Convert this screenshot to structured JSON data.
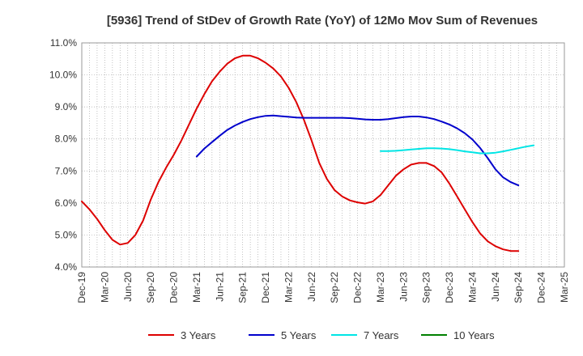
{
  "chart_data": {
    "type": "line",
    "title": "[5936]  Trend of StDev of Growth Rate (YoY) of 12Mo Mov Sum of Revenues",
    "xlabel": "",
    "ylabel": "",
    "ylim": [
      4.0,
      11.0
    ],
    "yticks": [
      4.0,
      5.0,
      6.0,
      7.0,
      8.0,
      9.0,
      10.0,
      11.0
    ],
    "ytick_labels": [
      "4.0%",
      "5.0%",
      "6.0%",
      "7.0%",
      "8.0%",
      "9.0%",
      "10.0%",
      "11.0%"
    ],
    "x_labels": [
      "Dec-19",
      "Mar-20",
      "Jun-20",
      "Sep-20",
      "Dec-20",
      "Mar-21",
      "Jun-21",
      "Sep-21",
      "Dec-21",
      "Mar-22",
      "Jun-22",
      "Sep-22",
      "Dec-22",
      "Mar-23",
      "Jun-23",
      "Sep-23",
      "Dec-23",
      "Mar-24",
      "Jun-24",
      "Sep-24",
      "Dec-24",
      "Mar-25"
    ],
    "grid": true,
    "legend_position": "bottom",
    "series": [
      {
        "name": "3 Years",
        "color": "#dd0000",
        "start_month": 0,
        "values": [
          6.05,
          5.8,
          5.5,
          5.15,
          4.85,
          4.7,
          4.75,
          5.0,
          5.45,
          6.1,
          6.65,
          7.1,
          7.5,
          7.95,
          8.45,
          8.95,
          9.4,
          9.8,
          10.1,
          10.35,
          10.52,
          10.6,
          10.6,
          10.52,
          10.38,
          10.2,
          9.95,
          9.6,
          9.15,
          8.6,
          7.95,
          7.25,
          6.75,
          6.4,
          6.2,
          6.08,
          6.02,
          5.98,
          6.05,
          6.25,
          6.55,
          6.85,
          7.05,
          7.2,
          7.25,
          7.25,
          7.15,
          6.95,
          6.6,
          6.2,
          5.8,
          5.4,
          5.05,
          4.8,
          4.65,
          4.55,
          4.5,
          4.5
        ]
      },
      {
        "name": "5 Years",
        "color": "#0000cc",
        "start_month": 15,
        "values": [
          7.45,
          7.7,
          7.9,
          8.1,
          8.28,
          8.42,
          8.53,
          8.62,
          8.68,
          8.72,
          8.73,
          8.71,
          8.69,
          8.67,
          8.66,
          8.66,
          8.66,
          8.66,
          8.66,
          8.66,
          8.65,
          8.63,
          8.61,
          8.6,
          8.6,
          8.62,
          8.65,
          8.68,
          8.7,
          8.7,
          8.67,
          8.62,
          8.54,
          8.45,
          8.33,
          8.18,
          7.98,
          7.72,
          7.4,
          7.05,
          6.8,
          6.65,
          6.55
        ]
      },
      {
        "name": "7 Years",
        "color": "#00e5e5",
        "start_month": 39,
        "values": [
          7.62,
          7.62,
          7.63,
          7.65,
          7.67,
          7.69,
          7.71,
          7.71,
          7.7,
          7.68,
          7.65,
          7.61,
          7.58,
          7.55,
          7.55,
          7.57,
          7.61,
          7.66,
          7.71,
          7.76,
          7.8
        ]
      },
      {
        "name": "10 Years",
        "color": "#008000",
        "start_month": 0,
        "values": []
      }
    ]
  }
}
